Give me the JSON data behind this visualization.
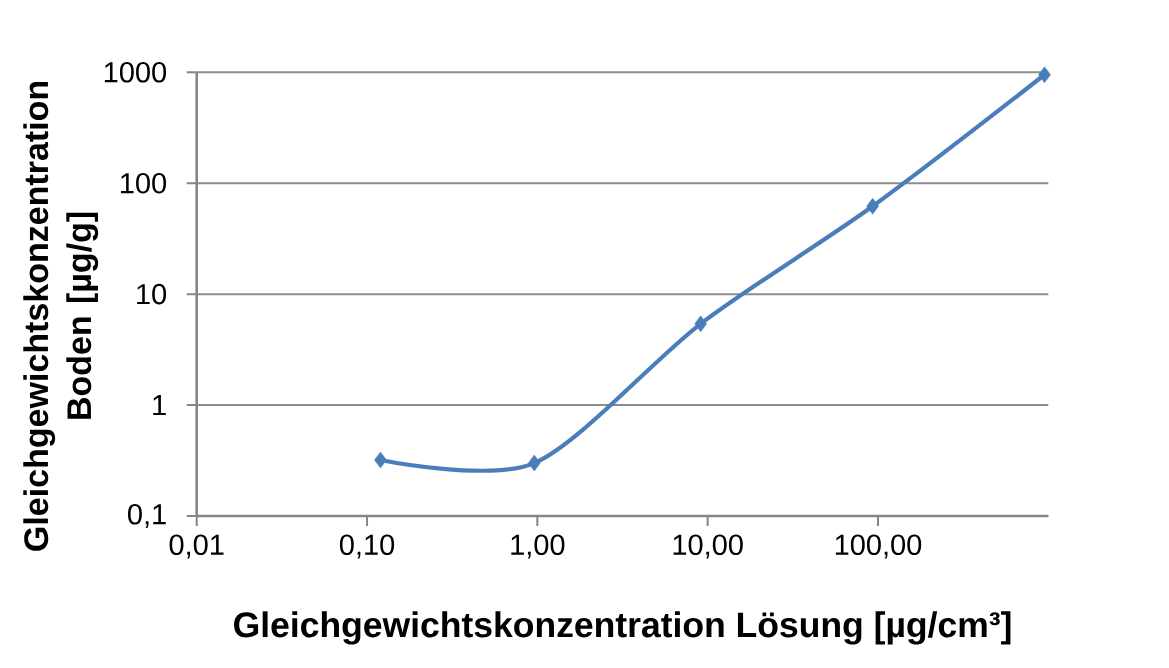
{
  "chart_data": {
    "type": "line",
    "xlabel": "Gleichgewichtskonzentration Lösung [µg/cm³]",
    "ylabel": "Gleichgewichtskonzentration Boden [µg/g]",
    "x": [
      0.12,
      0.96,
      9.1,
      93,
      950
    ],
    "series": [
      {
        "color": "#4a7ebb",
        "values": [
          0.32,
          0.3,
          5.4,
          62,
          950
        ]
      }
    ],
    "log": "xy",
    "xlim": [
      0.01,
      1000
    ],
    "ylim": [
      0.1,
      1000
    ],
    "xticks": [
      {
        "value": 0.01,
        "label": "0,01"
      },
      {
        "value": 0.1,
        "label": "0,10"
      },
      {
        "value": 1,
        "label": "1,00"
      },
      {
        "value": 10,
        "label": "10,00"
      },
      {
        "value": 100,
        "label": "100,00"
      }
    ],
    "yticks": [
      {
        "value": 0.1,
        "label": "0,1"
      },
      1,
      10,
      100,
      1000
    ],
    "grid": "y",
    "marker": "diamond",
    "line_style": "solid"
  }
}
